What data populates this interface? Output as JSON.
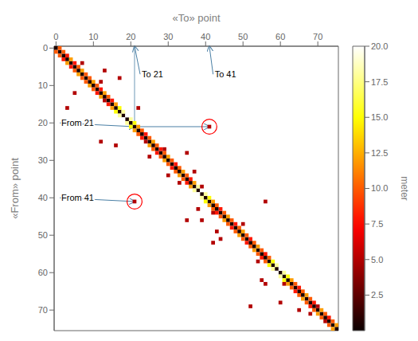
{
  "chart_data": {
    "type": "heatmap",
    "x_label": "«To» point",
    "y_label": "«From» point",
    "xlim": [
      -0.5,
      75.5
    ],
    "ylim": [
      75.5,
      -0.5
    ],
    "xticks": [
      0,
      10,
      20,
      30,
      40,
      50,
      60,
      70
    ],
    "yticks": [
      0,
      10,
      20,
      30,
      40,
      50,
      60,
      70
    ],
    "cells": [
      [
        0,
        0,
        0.5
      ],
      [
        1,
        1,
        0.5
      ],
      [
        2,
        2,
        0.5
      ],
      [
        3,
        3,
        0.5
      ],
      [
        4,
        4,
        0.5
      ],
      [
        5,
        5,
        0.5
      ],
      [
        6,
        6,
        0.5
      ],
      [
        7,
        7,
        0.5
      ],
      [
        8,
        8,
        0.5
      ],
      [
        9,
        9,
        0.5
      ],
      [
        10,
        10,
        0.5
      ],
      [
        11,
        11,
        0.5
      ],
      [
        12,
        12,
        0.5
      ],
      [
        13,
        13,
        0.5
      ],
      [
        14,
        14,
        0.5
      ],
      [
        15,
        15,
        0.5
      ],
      [
        16,
        16,
        0.5
      ],
      [
        17,
        17,
        0.5
      ],
      [
        18,
        18,
        0.5
      ],
      [
        19,
        19,
        0.5
      ],
      [
        20,
        20,
        0.5
      ],
      [
        21,
        21,
        0.5
      ],
      [
        22,
        22,
        0.5
      ],
      [
        23,
        23,
        0.5
      ],
      [
        24,
        24,
        0.5
      ],
      [
        25,
        25,
        0.5
      ],
      [
        26,
        26,
        0.5
      ],
      [
        27,
        27,
        0.5
      ],
      [
        28,
        28,
        0.5
      ],
      [
        29,
        29,
        0.5
      ],
      [
        30,
        30,
        0.5
      ],
      [
        31,
        31,
        0.5
      ],
      [
        32,
        32,
        0.5
      ],
      [
        33,
        33,
        0.5
      ],
      [
        34,
        34,
        0.5
      ],
      [
        35,
        35,
        0.5
      ],
      [
        36,
        36,
        0.5
      ],
      [
        37,
        37,
        0.5
      ],
      [
        38,
        38,
        0.5
      ],
      [
        39,
        39,
        0.5
      ],
      [
        40,
        40,
        0.5
      ],
      [
        41,
        41,
        0.5
      ],
      [
        42,
        42,
        0.5
      ],
      [
        43,
        43,
        0.5
      ],
      [
        44,
        44,
        0.5
      ],
      [
        45,
        45,
        0.5
      ],
      [
        46,
        46,
        0.5
      ],
      [
        47,
        47,
        0.5
      ],
      [
        48,
        48,
        0.5
      ],
      [
        49,
        49,
        0.5
      ],
      [
        50,
        50,
        0.5
      ],
      [
        51,
        51,
        0.5
      ],
      [
        52,
        52,
        0.5
      ],
      [
        53,
        53,
        0.5
      ],
      [
        54,
        54,
        0.5
      ],
      [
        55,
        55,
        0.5
      ],
      [
        56,
        56,
        0.5
      ],
      [
        57,
        57,
        0.5
      ],
      [
        58,
        58,
        0.5
      ],
      [
        59,
        59,
        0.5
      ],
      [
        60,
        60,
        0.5
      ],
      [
        61,
        61,
        0.5
      ],
      [
        62,
        62,
        0.5
      ],
      [
        63,
        63,
        0.5
      ],
      [
        64,
        64,
        0.5
      ],
      [
        65,
        65,
        0.5
      ],
      [
        66,
        66,
        0.5
      ],
      [
        67,
        67,
        0.5
      ],
      [
        68,
        68,
        0.5
      ],
      [
        69,
        69,
        0.5
      ],
      [
        70,
        70,
        0.5
      ],
      [
        71,
        71,
        0.5
      ],
      [
        72,
        72,
        0.5
      ],
      [
        73,
        73,
        0.5
      ],
      [
        74,
        74,
        0.5
      ],
      [
        75,
        75,
        0.5
      ],
      [
        0,
        1,
        10
      ],
      [
        1,
        0,
        10
      ],
      [
        1,
        2,
        10
      ],
      [
        2,
        1,
        10
      ],
      [
        2,
        3,
        8
      ],
      [
        3,
        2,
        8
      ],
      [
        3,
        4,
        12
      ],
      [
        4,
        3,
        12
      ],
      [
        4,
        5,
        8
      ],
      [
        5,
        4,
        8
      ],
      [
        5,
        6,
        10
      ],
      [
        6,
        5,
        10
      ],
      [
        6,
        7,
        12
      ],
      [
        7,
        6,
        12
      ],
      [
        7,
        8,
        10
      ],
      [
        8,
        7,
        10
      ],
      [
        8,
        9,
        10
      ],
      [
        9,
        8,
        10
      ],
      [
        9,
        10,
        12
      ],
      [
        10,
        9,
        12
      ],
      [
        10,
        11,
        10
      ],
      [
        11,
        10,
        10
      ],
      [
        11,
        12,
        8
      ],
      [
        12,
        11,
        8
      ],
      [
        12,
        13,
        12
      ],
      [
        13,
        12,
        12
      ],
      [
        13,
        14,
        10
      ],
      [
        14,
        15,
        8
      ],
      [
        15,
        14,
        8
      ],
      [
        15,
        16,
        12
      ],
      [
        16,
        15,
        12
      ],
      [
        16,
        17,
        15
      ],
      [
        17,
        16,
        15
      ],
      [
        17,
        18,
        18
      ],
      [
        18,
        17,
        18
      ],
      [
        18,
        19,
        20
      ],
      [
        19,
        18,
        20
      ],
      [
        19,
        20,
        18
      ],
      [
        20,
        19,
        18
      ],
      [
        20,
        21,
        15
      ],
      [
        21,
        20,
        15
      ],
      [
        21,
        22,
        12
      ],
      [
        22,
        21,
        12
      ],
      [
        22,
        23,
        10
      ],
      [
        23,
        22,
        10
      ],
      [
        23,
        24,
        8
      ],
      [
        24,
        23,
        8
      ],
      [
        24,
        25,
        10
      ],
      [
        25,
        26,
        12
      ],
      [
        26,
        25,
        12
      ],
      [
        26,
        27,
        10
      ],
      [
        27,
        26,
        10
      ],
      [
        27,
        28,
        8
      ],
      [
        28,
        27,
        8
      ],
      [
        28,
        29,
        10
      ],
      [
        29,
        28,
        10
      ],
      [
        29,
        30,
        12
      ],
      [
        30,
        29,
        12
      ],
      [
        30,
        31,
        10
      ],
      [
        31,
        30,
        10
      ],
      [
        31,
        32,
        8
      ],
      [
        32,
        31,
        8
      ],
      [
        32,
        33,
        10
      ],
      [
        33,
        32,
        10
      ],
      [
        33,
        34,
        12
      ],
      [
        34,
        33,
        12
      ],
      [
        34,
        35,
        10
      ],
      [
        35,
        34,
        10
      ],
      [
        35,
        36,
        8
      ],
      [
        36,
        35,
        8
      ],
      [
        36,
        37,
        12
      ],
      [
        37,
        36,
        12
      ],
      [
        37,
        38,
        18
      ],
      [
        38,
        37,
        18
      ],
      [
        38,
        39,
        20
      ],
      [
        39,
        38,
        20
      ],
      [
        39,
        40,
        18
      ],
      [
        40,
        39,
        18
      ],
      [
        40,
        41,
        15
      ],
      [
        41,
        40,
        15
      ],
      [
        41,
        42,
        12
      ],
      [
        42,
        41,
        12
      ],
      [
        42,
        43,
        10
      ],
      [
        43,
        42,
        10
      ],
      [
        43,
        44,
        8
      ],
      [
        44,
        43,
        8
      ],
      [
        44,
        45,
        10
      ],
      [
        45,
        44,
        10
      ],
      [
        45,
        46,
        12
      ],
      [
        46,
        45,
        12
      ],
      [
        46,
        47,
        10
      ],
      [
        47,
        46,
        10
      ],
      [
        47,
        48,
        8
      ],
      [
        48,
        47,
        8
      ],
      [
        48,
        49,
        10
      ],
      [
        49,
        48,
        10
      ],
      [
        49,
        50,
        12
      ],
      [
        50,
        49,
        12
      ],
      [
        50,
        51,
        10
      ],
      [
        51,
        50,
        10
      ],
      [
        51,
        52,
        8
      ],
      [
        52,
        51,
        8
      ],
      [
        52,
        53,
        10
      ],
      [
        53,
        52,
        10
      ],
      [
        53,
        54,
        12
      ],
      [
        54,
        53,
        12
      ],
      [
        54,
        55,
        10
      ],
      [
        55,
        54,
        10
      ],
      [
        55,
        56,
        8
      ],
      [
        56,
        55,
        8
      ],
      [
        56,
        57,
        10
      ],
      [
        57,
        56,
        10
      ],
      [
        57,
        58,
        15
      ],
      [
        58,
        57,
        15
      ],
      [
        58,
        59,
        18
      ],
      [
        59,
        58,
        18
      ],
      [
        59,
        60,
        20
      ],
      [
        60,
        59,
        20
      ],
      [
        60,
        61,
        18
      ],
      [
        61,
        60,
        18
      ],
      [
        61,
        62,
        15
      ],
      [
        62,
        61,
        15
      ],
      [
        62,
        63,
        12
      ],
      [
        63,
        62,
        12
      ],
      [
        63,
        64,
        10
      ],
      [
        64,
        63,
        10
      ],
      [
        64,
        65,
        8
      ],
      [
        65,
        64,
        8
      ],
      [
        65,
        66,
        10
      ],
      [
        66,
        65,
        10
      ],
      [
        66,
        67,
        12
      ],
      [
        67,
        66,
        12
      ],
      [
        67,
        68,
        10
      ],
      [
        68,
        67,
        10
      ],
      [
        68,
        69,
        8
      ],
      [
        69,
        68,
        8
      ],
      [
        70,
        69,
        10
      ],
      [
        70,
        71,
        12
      ],
      [
        71,
        70,
        12
      ],
      [
        71,
        72,
        10
      ],
      [
        72,
        71,
        10
      ],
      [
        72,
        73,
        8
      ],
      [
        73,
        74,
        10
      ],
      [
        74,
        73,
        10
      ],
      [
        74,
        75,
        12
      ],
      [
        75,
        74,
        12
      ],
      [
        4,
        7,
        5
      ],
      [
        12,
        5,
        5
      ],
      [
        16,
        3,
        5
      ],
      [
        6,
        13,
        5
      ],
      [
        9,
        12,
        5
      ],
      [
        14,
        13,
        5
      ],
      [
        25,
        12,
        5
      ],
      [
        26,
        16,
        5
      ],
      [
        8,
        17,
        5
      ],
      [
        7,
        24,
        5
      ],
      [
        16,
        22,
        5
      ],
      [
        25,
        24,
        5
      ],
      [
        29,
        25,
        5
      ],
      [
        27,
        29,
        5
      ],
      [
        34,
        30,
        5
      ],
      [
        36,
        33,
        5
      ],
      [
        28,
        35,
        5
      ],
      [
        33,
        37,
        5
      ],
      [
        46,
        35,
        5
      ],
      [
        43,
        38,
        5
      ],
      [
        37,
        39,
        5
      ],
      [
        46,
        39,
        5
      ],
      [
        44,
        42,
        5
      ],
      [
        52,
        42,
        5
      ],
      [
        49,
        43,
        5
      ],
      [
        51,
        44,
        5
      ],
      [
        47,
        50,
        5
      ],
      [
        69,
        52,
        5
      ],
      [
        57,
        54,
        5
      ],
      [
        62,
        55,
        5
      ],
      [
        41,
        56,
        5
      ],
      [
        63,
        56,
        5
      ],
      [
        63,
        61,
        5
      ],
      [
        68,
        60,
        5
      ],
      [
        70,
        65,
        5
      ],
      [
        69,
        70,
        5
      ],
      [
        71,
        68,
        5
      ],
      [
        73,
        72,
        5
      ],
      [
        21,
        41,
        5
      ],
      [
        41,
        21,
        5
      ]
    ],
    "colorbar": {
      "label": "meter",
      "range": [
        0,
        20
      ],
      "ticks": [
        2.5,
        {
          "value": 5,
          "label": "5.0"
        },
        7.5,
        {
          "value": 10,
          "label": "10.0"
        },
        12.5,
        {
          "value": 15,
          "label": "15.0"
        },
        17.5,
        {
          "value": 20,
          "label": "20.0"
        }
      ]
    },
    "annotations": [
      {
        "text": "To 21",
        "x": 21,
        "y": -0.5,
        "text_x": 22.5,
        "text_y": 7,
        "color": "#4a7fa5"
      },
      {
        "text": "To 41",
        "x": 41,
        "y": -0.5,
        "text_x": 42,
        "text_y": 7,
        "color": "#4a7fa5"
      },
      {
        "text": "From 21",
        "x": 21,
        "y": 21,
        "text_x": 1,
        "text_y": 20,
        "color": "#4a7fa5"
      },
      {
        "text": "From 41",
        "x": 21,
        "y": 41,
        "text_x": 1,
        "text_y": 40,
        "color": "#4a7fa5"
      }
    ],
    "arrows": [
      {
        "x": 41,
        "y": 21,
        "from_x": 21.5,
        "from_y": 21,
        "color": "#4a7fa5"
      }
    ],
    "lines": [
      {
        "x": [
          21,
          21
        ],
        "y": [
          -0.5,
          21
        ],
        "color": "#4a7fa5"
      }
    ],
    "circles": [
      {
        "x": 41,
        "y": 21,
        "color": "red"
      },
      {
        "x": 21,
        "y": 41,
        "color": "red"
      }
    ]
  }
}
